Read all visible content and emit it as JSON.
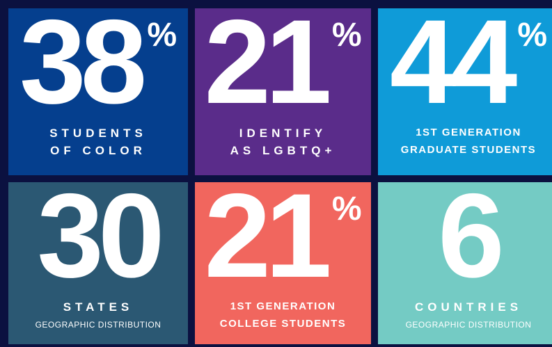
{
  "tiles": [
    {
      "number": "38",
      "suffix": "%",
      "line1": "STUDENTS",
      "line2": "OF COLOR",
      "color": "#053f8e"
    },
    {
      "number": "21",
      "suffix": "%",
      "line1": "IDENTIFY",
      "line2": "AS LGBTQ+",
      "color": "#5a2c8a"
    },
    {
      "number": "44",
      "suffix": "%",
      "line1": "1ST GENERATION",
      "line2": "GRADUATE STUDENTS",
      "color": "#0f9bd8"
    },
    {
      "number": "30",
      "line1": "STATES",
      "line2": "GEOGRAPHIC DISTRIBUTION",
      "color": "#2b5873"
    },
    {
      "number": "21",
      "suffix": "%",
      "line1": "1ST GENERATION",
      "line2": "COLLEGE STUDENTS",
      "color": "#f1665e"
    },
    {
      "number": "6",
      "line1": "COUNTRIES",
      "line2": "GEOGRAPHIC DISTRIBUTION",
      "color": "#74cbc4"
    }
  ]
}
